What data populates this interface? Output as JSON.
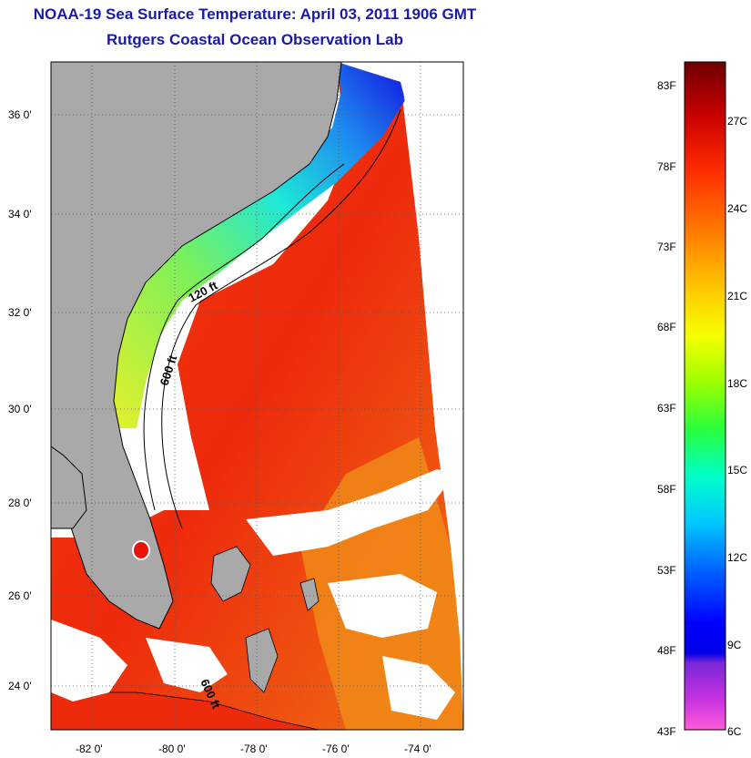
{
  "header": {
    "title": "NOAA-19 Sea Surface Temperature:  April 03, 2011 1906 GMT",
    "subtitle": "Rutgers Coastal Ocean Observation Lab"
  },
  "map": {
    "lat_ticks": [
      "36 0'",
      "34 0'",
      "32 0'",
      "30 0'",
      "28 0'",
      "26 0'",
      "24 0'"
    ],
    "lon_ticks": [
      "-82 0'",
      "-80 0'",
      "-78 0'",
      "-76 0'",
      "-74 0'"
    ],
    "contours": [
      "120 ft",
      "600 ft",
      "600 ft"
    ],
    "colors": {
      "land": "#a9a9a9",
      "cloud": "#ffffff",
      "water_warm": "#e8140c"
    }
  },
  "colorbar": {
    "fahrenheit": [
      "83F",
      "78F",
      "73F",
      "68F",
      "63F",
      "58F",
      "53F",
      "48F",
      "43F"
    ],
    "celsius": [
      "27C",
      "24C",
      "21C",
      "18C",
      "15C",
      "12C",
      "9C",
      "6C"
    ]
  }
}
